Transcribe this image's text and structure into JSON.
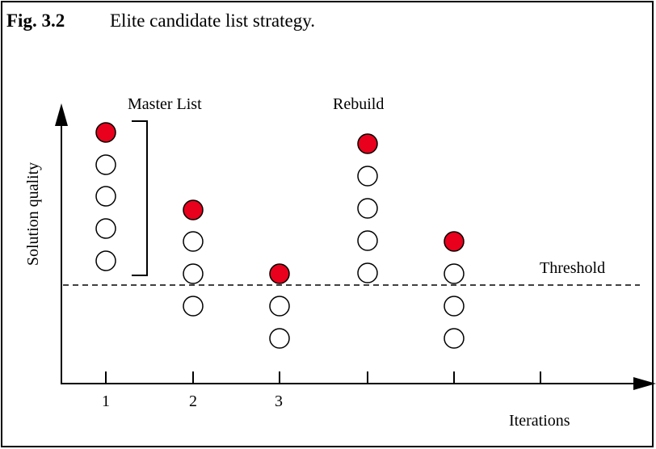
{
  "caption": {
    "label": "Fig. 3.2",
    "text": "Elite candidate list strategy."
  },
  "labels": {
    "master_list": "Master List",
    "rebuild": "Rebuild",
    "threshold": "Threshold"
  },
  "axes": {
    "y_label": "Solution quality",
    "x_label": "Iterations",
    "x_ticks": [
      "1",
      "2",
      "3"
    ]
  }
}
